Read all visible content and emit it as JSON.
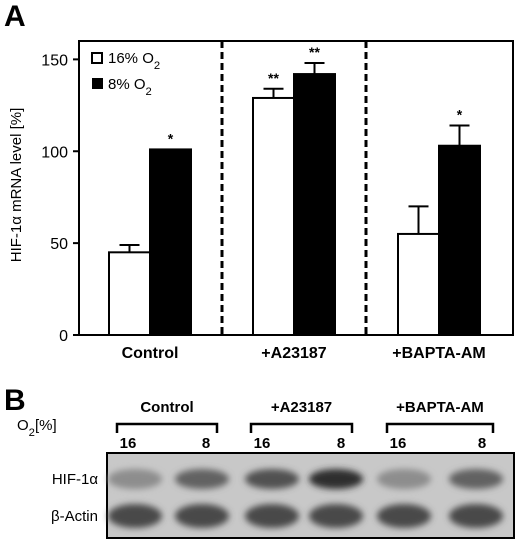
{
  "chart_data": {
    "type": "bar",
    "panel_label": "A",
    "ylabel": "HIF-1α mRNA level [%]",
    "ylim": [
      0,
      160
    ],
    "yticks": [
      0,
      50,
      100,
      150
    ],
    "grid": false,
    "legend_position": "top-left",
    "categories": [
      "Control",
      "+A23187",
      "+BAPTA-AM"
    ],
    "series": [
      {
        "name": "16% O2",
        "fill": "#ffffff",
        "values": [
          45,
          129,
          55
        ],
        "errors": [
          4,
          5,
          15
        ]
      },
      {
        "name": "8% O2",
        "fill": "#000000",
        "values": [
          101,
          142,
          103
        ],
        "errors": [
          0,
          6,
          11
        ]
      }
    ],
    "significance": [
      {
        "category": 0,
        "series": 1,
        "label": "*"
      },
      {
        "category": 1,
        "series": 0,
        "label": "**"
      },
      {
        "category": 1,
        "series": 1,
        "label": "**"
      },
      {
        "category": 2,
        "series": 1,
        "label": "*"
      }
    ]
  },
  "blot": {
    "panel_label": "B",
    "o2_label": "O2[%]",
    "groups": [
      {
        "label": "Control",
        "lanes": [
          "16",
          "8"
        ]
      },
      {
        "label": "+A23187",
        "lanes": [
          "16",
          "8"
        ]
      },
      {
        "label": "+BAPTA-AM",
        "lanes": [
          "16",
          "8"
        ]
      }
    ],
    "rows": [
      {
        "label": "HIF-1α",
        "intensity": [
          0.35,
          0.6,
          0.7,
          0.9,
          0.35,
          0.6
        ]
      },
      {
        "label": "β-Actin",
        "intensity": [
          0.75,
          0.75,
          0.75,
          0.75,
          0.75,
          0.75
        ]
      }
    ]
  }
}
